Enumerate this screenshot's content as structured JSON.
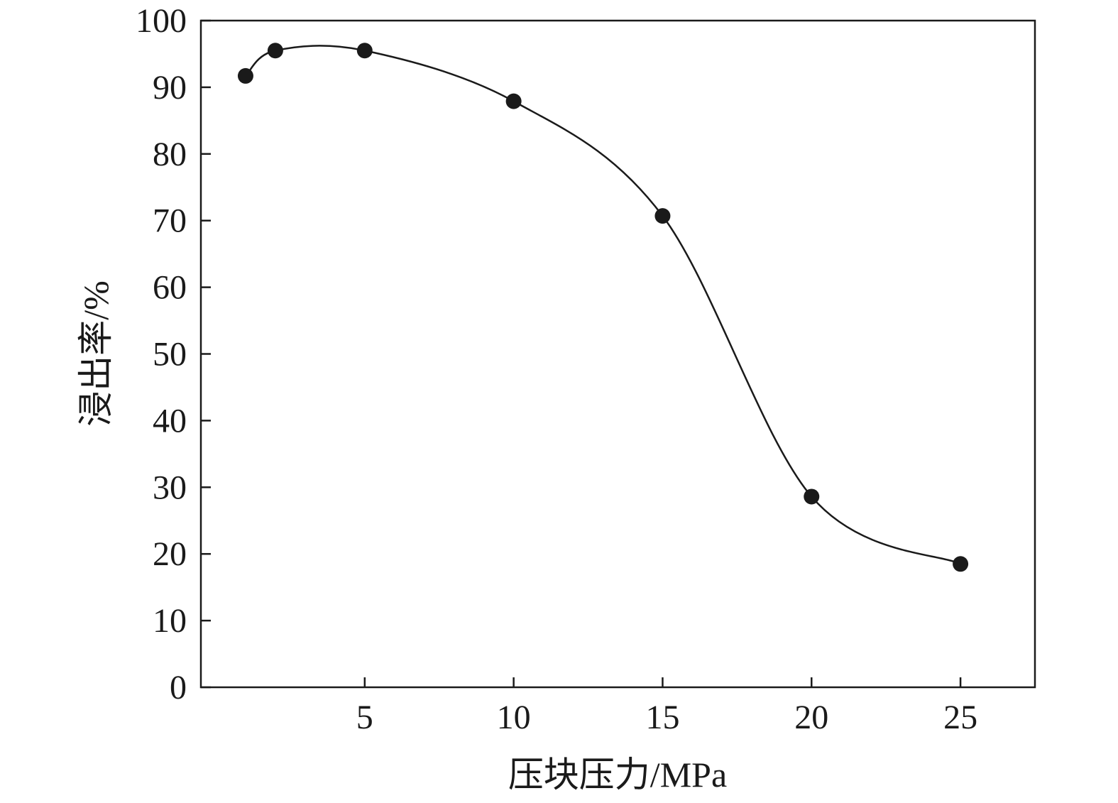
{
  "chart_data": {
    "type": "line",
    "title": "",
    "xlabel": "压块压力/MPa",
    "ylabel": "浸出率/%",
    "xlim": [
      -0.5,
      27.5
    ],
    "ylim": [
      0,
      100
    ],
    "xticks": [
      5,
      10,
      15,
      20,
      25
    ],
    "yticks": [
      0,
      10,
      20,
      30,
      40,
      50,
      60,
      70,
      80,
      90,
      100
    ],
    "grid": false,
    "legend": "none",
    "series": [
      {
        "marker": "filled-circle",
        "line": "smooth",
        "color": "#1a1a1a",
        "x": [
          1,
          2,
          5,
          10,
          15,
          20,
          25
        ],
        "y": [
          91.7,
          95.5,
          95.5,
          87.9,
          70.7,
          28.6,
          18.5
        ]
      }
    ]
  }
}
